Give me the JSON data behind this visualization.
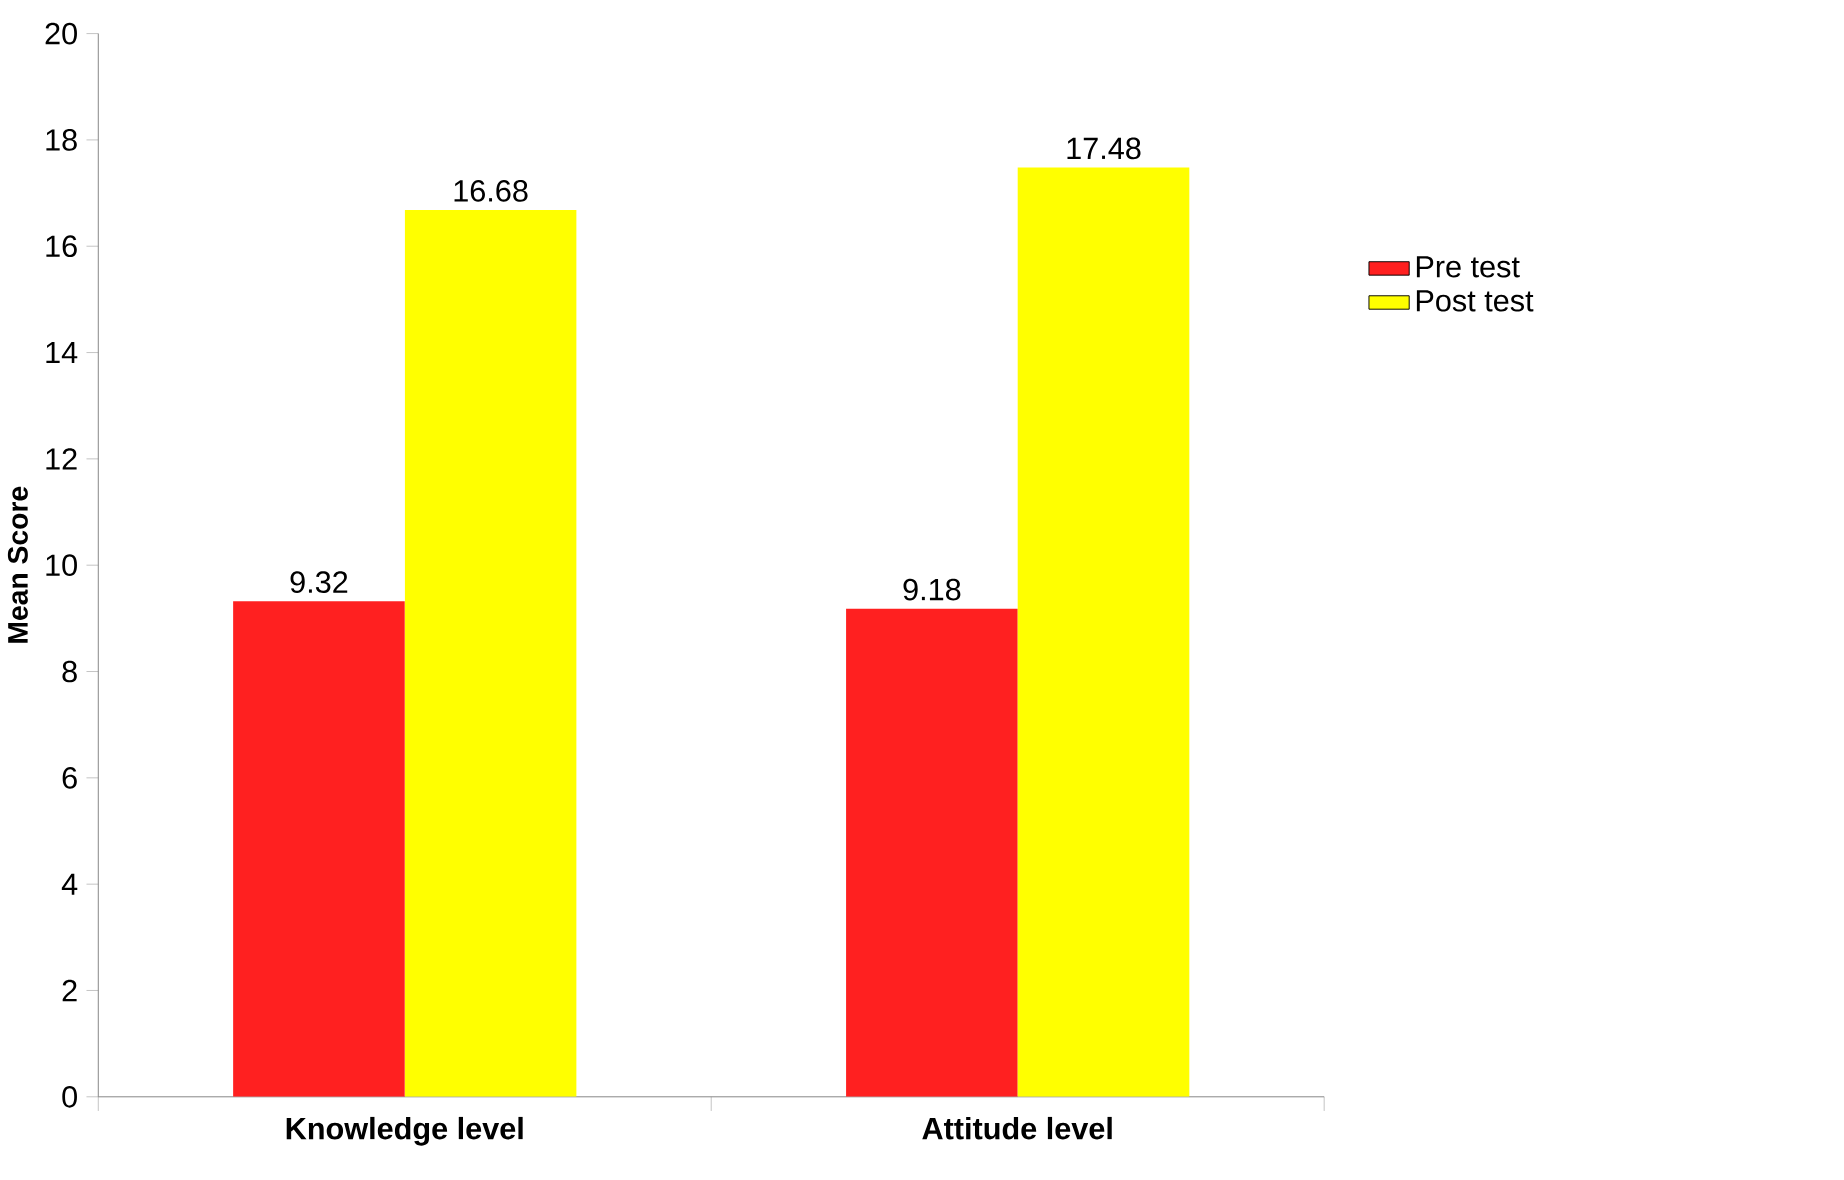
{
  "chart_data": {
    "type": "bar",
    "ylabel": "Mean Score",
    "categories": [
      "Knowledge  level",
      "Attitude level"
    ],
    "series": [
      {
        "name": "Pre test",
        "color": "#ff2020",
        "values": [
          9.32,
          9.18
        ]
      },
      {
        "name": "Post test",
        "color": "#ffff00",
        "values": [
          16.68,
          17.48
        ]
      }
    ],
    "ylim": [
      0,
      20
    ],
    "yticks": [
      0,
      2,
      4,
      6,
      8,
      10,
      12,
      14,
      16,
      18,
      20
    ],
    "data_labels": true,
    "legend": "right"
  }
}
